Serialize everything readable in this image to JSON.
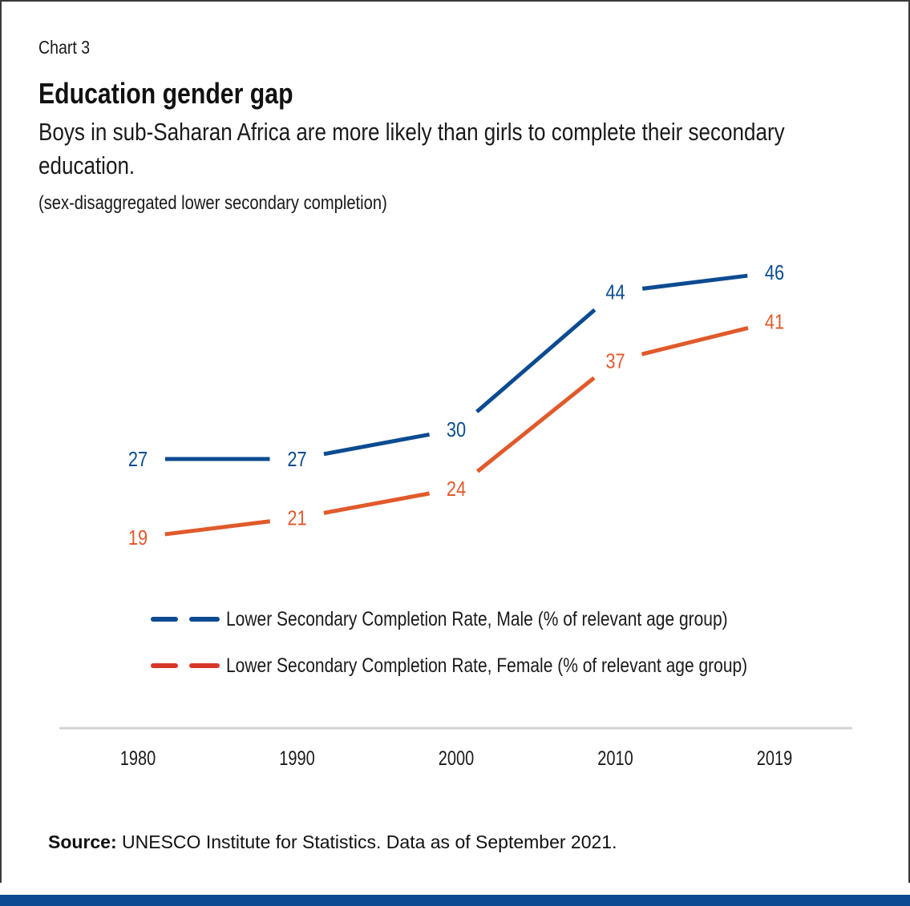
{
  "header": {
    "chart_label": "Chart 3",
    "title": "Education gender gap",
    "subtitle": "Boys in sub-Saharan Africa are more likely than girls to complete their secondary education.",
    "note": "(sex-disaggregated lower secondary completion)"
  },
  "colors": {
    "male": "#0c4b91",
    "female": "#e05a2b",
    "legend_female": "#d9362b",
    "axis": "#d4d4d4",
    "bottom_bar": "#0c4b91"
  },
  "legend": {
    "male": "Lower Secondary Completion Rate, Male (% of relevant age group)",
    "female": "Lower Secondary Completion Rate, Female (% of relevant age group)"
  },
  "source": {
    "label": "Source:",
    "text": " UNESCO Institute for Statistics. Data as of September 2021."
  },
  "chart_data": {
    "type": "line",
    "title": "Education gender gap",
    "subtitle": "Boys in sub-Saharan Africa are more likely than girls to complete their secondary education.",
    "xlabel": "",
    "ylabel": "(sex-disaggregated lower secondary completion)",
    "categories": [
      "1980",
      "1990",
      "2000",
      "2010",
      "2019"
    ],
    "series": [
      {
        "name": "Lower Secondary Completion Rate, Male (% of relevant age group)",
        "values": [
          27,
          27,
          30,
          44,
          46
        ]
      },
      {
        "name": "Lower Secondary Completion Rate, Female (% of relevant age group)",
        "values": [
          19,
          21,
          24,
          37,
          41
        ]
      }
    ],
    "ylim": [
      10,
      50
    ],
    "grid": false,
    "data_labels": true,
    "legend_position": "bottom-left"
  }
}
